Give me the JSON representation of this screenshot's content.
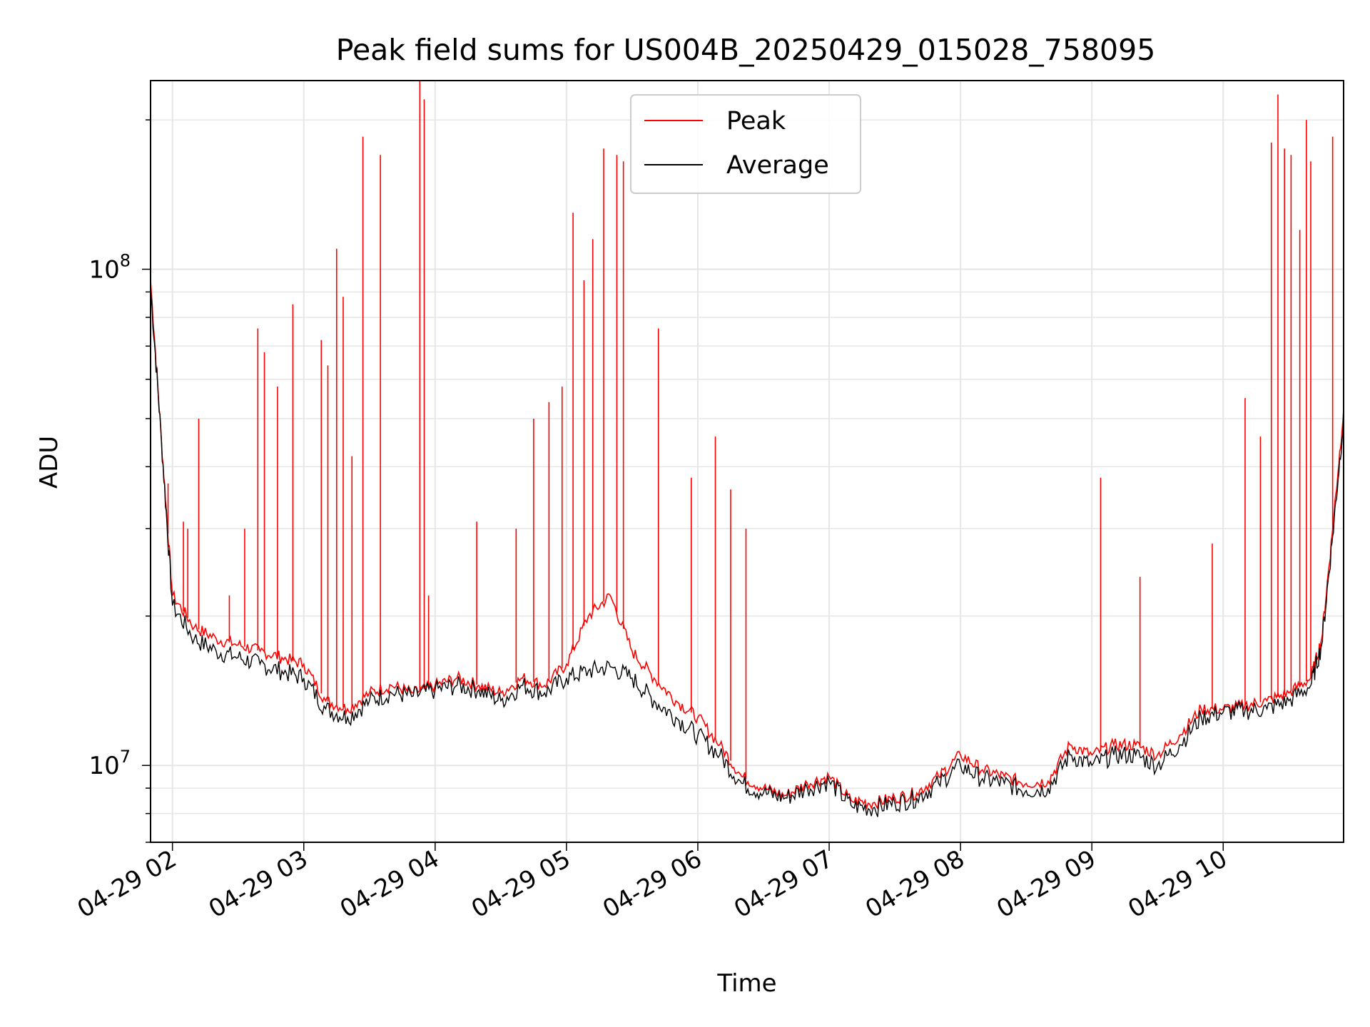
{
  "chart_data": {
    "type": "line",
    "title": "Peak field sums for US004B_20250429_015028_758095",
    "xlabel": "Time",
    "ylabel": "ADU",
    "y_scale": "log",
    "ylim": [
      7000000,
      240000000
    ],
    "xlim": [
      "2025-04-29 01:50",
      "2025-04-29 10:55"
    ],
    "grid": true,
    "legend_position": "top-center",
    "x_ticks": [
      "04-29 02",
      "04-29 03",
      "04-29 04",
      "04-29 05",
      "04-29 06",
      "04-29 07",
      "04-29 08",
      "04-29 09",
      "04-29 10"
    ],
    "y_ticks": [
      {
        "value": 10000000,
        "base": "10",
        "exp": "7"
      },
      {
        "value": 100000000,
        "base": "10",
        "exp": "8"
      }
    ],
    "series": [
      {
        "name": "Peak",
        "color": "#ff0000",
        "x": [
          "2025-04-29 01:50",
          "2025-04-29 01:55",
          "2025-04-29 02:00",
          "2025-04-29 02:10",
          "2025-04-29 02:20",
          "2025-04-29 02:30",
          "2025-04-29 02:40",
          "2025-04-29 02:50",
          "2025-04-29 03:00",
          "2025-04-29 03:10",
          "2025-04-29 03:20",
          "2025-04-29 03:30",
          "2025-04-29 03:40",
          "2025-04-29 03:50",
          "2025-04-29 04:00",
          "2025-04-29 04:10",
          "2025-04-29 04:20",
          "2025-04-29 04:30",
          "2025-04-29 04:40",
          "2025-04-29 04:50",
          "2025-04-29 05:00",
          "2025-04-29 05:10",
          "2025-04-29 05:20",
          "2025-04-29 05:30",
          "2025-04-29 05:40",
          "2025-04-29 05:50",
          "2025-04-29 06:00",
          "2025-04-29 06:10",
          "2025-04-29 06:20",
          "2025-04-29 06:30",
          "2025-04-29 06:40",
          "2025-04-29 06:50",
          "2025-04-29 07:00",
          "2025-04-29 07:10",
          "2025-04-29 07:20",
          "2025-04-29 07:30",
          "2025-04-29 07:40",
          "2025-04-29 07:50",
          "2025-04-29 08:00",
          "2025-04-29 08:10",
          "2025-04-29 08:20",
          "2025-04-29 08:30",
          "2025-04-29 08:40",
          "2025-04-29 08:50",
          "2025-04-29 09:00",
          "2025-04-29 09:10",
          "2025-04-29 09:20",
          "2025-04-29 09:30",
          "2025-04-29 09:40",
          "2025-04-29 09:50",
          "2025-04-29 10:00",
          "2025-04-29 10:10",
          "2025-04-29 10:20",
          "2025-04-29 10:30",
          "2025-04-29 10:40",
          "2025-04-29 10:45",
          "2025-04-29 10:50",
          "2025-04-29 10:55"
        ],
        "values": [
          95000000,
          45000000,
          22000000,
          19000000,
          18000000,
          17500000,
          17000000,
          16500000,
          16000000,
          13500000,
          13000000,
          14000000,
          14500000,
          14000000,
          14500000,
          15000000,
          14500000,
          14000000,
          15000000,
          14500000,
          16000000,
          20000000,
          22000000,
          17000000,
          15000000,
          13500000,
          12500000,
          11000000,
          9500000,
          9000000,
          8700000,
          9200000,
          9500000,
          8500000,
          8400000,
          8600000,
          8800000,
          9500000,
          10500000,
          9800000,
          9500000,
          9200000,
          9300000,
          11000000,
          10500000,
          11000000,
          11000000,
          10500000,
          11500000,
          13000000,
          13000000,
          13200000,
          13500000,
          14000000,
          15000000,
          18000000,
          30000000,
          52000000
        ],
        "spikes": [
          {
            "x": "2025-04-29 01:58",
            "value": 37000000
          },
          {
            "x": "2025-04-29 02:05",
            "value": 31000000
          },
          {
            "x": "2025-04-29 02:07",
            "value": 30000000
          },
          {
            "x": "2025-04-29 02:12",
            "value": 50000000
          },
          {
            "x": "2025-04-29 02:26",
            "value": 22000000
          },
          {
            "x": "2025-04-29 02:33",
            "value": 30000000
          },
          {
            "x": "2025-04-29 02:39",
            "value": 76000000
          },
          {
            "x": "2025-04-29 02:42",
            "value": 68000000
          },
          {
            "x": "2025-04-29 02:48",
            "value": 58000000
          },
          {
            "x": "2025-04-29 02:55",
            "value": 85000000
          },
          {
            "x": "2025-04-29 03:08",
            "value": 72000000
          },
          {
            "x": "2025-04-29 03:11",
            "value": 64000000
          },
          {
            "x": "2025-04-29 03:15",
            "value": 110000000
          },
          {
            "x": "2025-04-29 03:18",
            "value": 88000000
          },
          {
            "x": "2025-04-29 03:22",
            "value": 42000000
          },
          {
            "x": "2025-04-29 03:27",
            "value": 185000000
          },
          {
            "x": "2025-04-29 03:35",
            "value": 170000000
          },
          {
            "x": "2025-04-29 03:53",
            "value": 240000000
          },
          {
            "x": "2025-04-29 03:55",
            "value": 220000000
          },
          {
            "x": "2025-04-29 03:57",
            "value": 22000000
          },
          {
            "x": "2025-04-29 04:19",
            "value": 31000000
          },
          {
            "x": "2025-04-29 04:37",
            "value": 30000000
          },
          {
            "x": "2025-04-29 04:45",
            "value": 50000000
          },
          {
            "x": "2025-04-29 04:52",
            "value": 54000000
          },
          {
            "x": "2025-04-29 04:58",
            "value": 58000000
          },
          {
            "x": "2025-04-29 05:03",
            "value": 130000000
          },
          {
            "x": "2025-04-29 05:08",
            "value": 95000000
          },
          {
            "x": "2025-04-29 05:12",
            "value": 115000000
          },
          {
            "x": "2025-04-29 05:17",
            "value": 175000000
          },
          {
            "x": "2025-04-29 05:23",
            "value": 170000000
          },
          {
            "x": "2025-04-29 05:26",
            "value": 165000000
          },
          {
            "x": "2025-04-29 05:42",
            "value": 76000000
          },
          {
            "x": "2025-04-29 05:57",
            "value": 38000000
          },
          {
            "x": "2025-04-29 06:08",
            "value": 46000000
          },
          {
            "x": "2025-04-29 06:15",
            "value": 36000000
          },
          {
            "x": "2025-04-29 06:22",
            "value": 30000000
          },
          {
            "x": "2025-04-29 09:04",
            "value": 38000000
          },
          {
            "x": "2025-04-29 09:22",
            "value": 24000000
          },
          {
            "x": "2025-04-29 09:55",
            "value": 28000000
          },
          {
            "x": "2025-04-29 10:10",
            "value": 55000000
          },
          {
            "x": "2025-04-29 10:17",
            "value": 46000000
          },
          {
            "x": "2025-04-29 10:22",
            "value": 180000000
          },
          {
            "x": "2025-04-29 10:25",
            "value": 225000000
          },
          {
            "x": "2025-04-29 10:28",
            "value": 175000000
          },
          {
            "x": "2025-04-29 10:31",
            "value": 170000000
          },
          {
            "x": "2025-04-29 10:35",
            "value": 120000000
          },
          {
            "x": "2025-04-29 10:38",
            "value": 200000000
          },
          {
            "x": "2025-04-29 10:40",
            "value": 165000000
          },
          {
            "x": "2025-04-29 10:50",
            "value": 185000000
          }
        ]
      },
      {
        "name": "Average",
        "color": "#000000",
        "x": [
          "2025-04-29 01:50",
          "2025-04-29 01:55",
          "2025-04-29 02:00",
          "2025-04-29 02:10",
          "2025-04-29 02:20",
          "2025-04-29 02:30",
          "2025-04-29 02:40",
          "2025-04-29 02:50",
          "2025-04-29 03:00",
          "2025-04-29 03:10",
          "2025-04-29 03:20",
          "2025-04-29 03:30",
          "2025-04-29 03:40",
          "2025-04-29 03:50",
          "2025-04-29 04:00",
          "2025-04-29 04:10",
          "2025-04-29 04:20",
          "2025-04-29 04:30",
          "2025-04-29 04:40",
          "2025-04-29 04:50",
          "2025-04-29 05:00",
          "2025-04-29 05:10",
          "2025-04-29 05:20",
          "2025-04-29 05:30",
          "2025-04-29 05:40",
          "2025-04-29 05:50",
          "2025-04-29 06:00",
          "2025-04-29 06:10",
          "2025-04-29 06:20",
          "2025-04-29 06:30",
          "2025-04-29 06:40",
          "2025-04-29 06:50",
          "2025-04-29 07:00",
          "2025-04-29 07:10",
          "2025-04-29 07:20",
          "2025-04-29 07:30",
          "2025-04-29 07:40",
          "2025-04-29 07:50",
          "2025-04-29 08:00",
          "2025-04-29 08:10",
          "2025-04-29 08:20",
          "2025-04-29 08:30",
          "2025-04-29 08:40",
          "2025-04-29 08:50",
          "2025-04-29 09:00",
          "2025-04-29 09:10",
          "2025-04-29 09:20",
          "2025-04-29 09:30",
          "2025-04-29 09:40",
          "2025-04-29 09:50",
          "2025-04-29 10:00",
          "2025-04-29 10:10",
          "2025-04-29 10:20",
          "2025-04-29 10:30",
          "2025-04-29 10:40",
          "2025-04-29 10:45",
          "2025-04-29 10:50",
          "2025-04-29 10:55"
        ],
        "values": [
          92000000,
          45000000,
          21000000,
          18000000,
          17000000,
          16500000,
          16000000,
          15500000,
          15000000,
          13000000,
          12500000,
          13500000,
          14000000,
          13800000,
          14200000,
          14500000,
          14200000,
          13500000,
          14500000,
          14000000,
          15000000,
          15500000,
          15800000,
          15000000,
          13500000,
          12500000,
          11500000,
          10500000,
          9200000,
          8800000,
          8600000,
          9000000,
          9300000,
          8300000,
          8200000,
          8400000,
          8600000,
          9200000,
          10000000,
          9400000,
          9200000,
          8900000,
          9000000,
          10500000,
          10000000,
          10500000,
          10500000,
          10000000,
          11000000,
          12500000,
          12800000,
          12900000,
          13000000,
          13500000,
          14500000,
          17500000,
          29000000,
          50000000
        ]
      }
    ]
  }
}
